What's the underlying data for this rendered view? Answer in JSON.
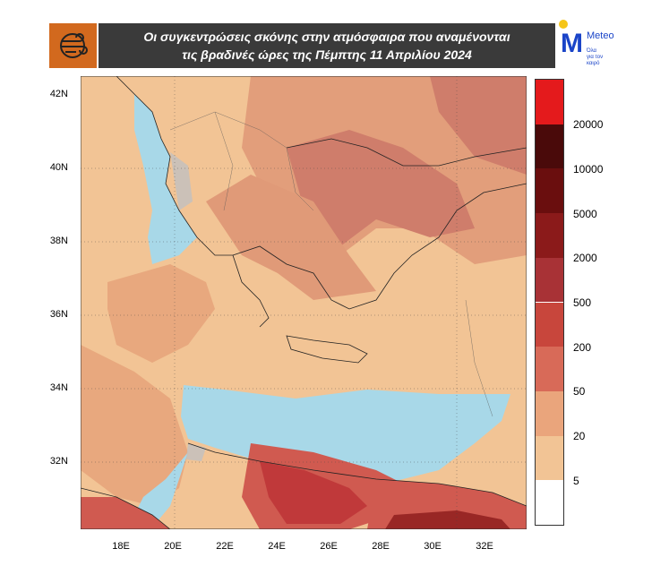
{
  "title": {
    "line1": "Οι συγκεντρώσεις σκόνης στην ατμόσφαιρα που αναμένονται",
    "line2": "τις βραδινές ώρες της Πέμπτης 11 Απριλίου 2024"
  },
  "brand": {
    "name": "Meteo",
    "tagline": "Όλα για τον καιρό",
    "color": "#1a44c8"
  },
  "map": {
    "y_labels": [
      "42N",
      "40N",
      "38N",
      "36N",
      "34N",
      "32N"
    ],
    "x_labels": [
      "18E",
      "20E",
      "22E",
      "24E",
      "26E",
      "28E",
      "30E",
      "32E"
    ],
    "sea_color": "#a8d8e8",
    "base_dust_color": "#f2c495"
  },
  "legend": {
    "colors": [
      "#e41a1c",
      "#4a0a0a",
      "#6a0e0e",
      "#8b1a1a",
      "#a83236",
      "#c8463c",
      "#d86a58",
      "#e0907a",
      "#eaa57c",
      "#f2c495",
      "#ffffff"
    ],
    "labels": [
      "20000",
      "10000",
      "5000",
      "2000",
      "500",
      "200",
      "50",
      "20",
      "5"
    ]
  }
}
